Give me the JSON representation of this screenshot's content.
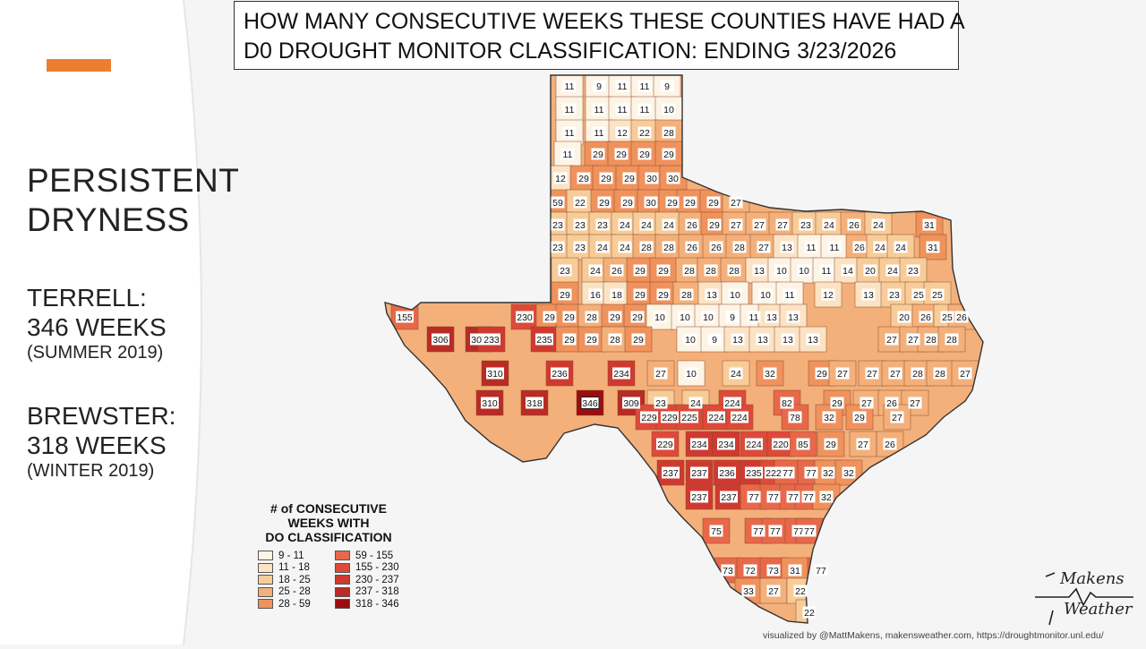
{
  "header": {
    "title_line1": "HOW MANY CONSECUTIVE WEEKS THESE COUNTIES HAVE HAD A",
    "title_line2": "D0 DROUGHT MONITOR CLASSIFICATION: ENDING 3/23/2026"
  },
  "sidebar": {
    "title_line1": "PERSISTENT",
    "title_line2": "DRYNESS",
    "facts": [
      {
        "name": "TERRELL:",
        "weeks": "346 WEEKS",
        "since": "(SUMMER 2019)"
      },
      {
        "name": "BREWSTER:",
        "weeks": "318 WEEKS",
        "since": "(WINTER 2019)"
      }
    ]
  },
  "legend": {
    "title_line1": "# of CONSECUTIVE",
    "title_line2": "WEEKS WITH",
    "title_line3": "DO CLASSIFICATION",
    "bins": [
      {
        "label": "9 - 11",
        "color": "#fef4e6"
      },
      {
        "label": "11 - 18",
        "color": "#fce3c4"
      },
      {
        "label": "18 - 25",
        "color": "#f8cc98"
      },
      {
        "label": "25 - 28",
        "color": "#f4b07a"
      },
      {
        "label": "28 - 59",
        "color": "#ef925c"
      },
      {
        "label": "59 - 155",
        "color": "#e8684a"
      },
      {
        "label": "155 - 230",
        "color": "#dd4a3a"
      },
      {
        "label": "230 - 237",
        "color": "#cf3a30"
      },
      {
        "label": "237 - 318",
        "color": "#b82c25"
      },
      {
        "label": "318 - 346",
        "color": "#9a0e10"
      }
    ]
  },
  "map": {
    "county_values": [
      "11",
      "9",
      "11",
      "11",
      "9",
      "11",
      "11",
      "11",
      "11",
      "10",
      "11",
      "11",
      "12",
      "22",
      "28",
      "11",
      "29",
      "29",
      "29",
      "29",
      "12",
      "29",
      "29",
      "29",
      "30",
      "30",
      "59",
      "22",
      "29",
      "29",
      "30",
      "29",
      "29",
      "29",
      "27",
      "23",
      "23",
      "23",
      "24",
      "24",
      "24",
      "26",
      "29",
      "27",
      "27",
      "27",
      "23",
      "24",
      "26",
      "24",
      "31",
      "23",
      "23",
      "24",
      "24",
      "28",
      "28",
      "26",
      "26",
      "28",
      "27",
      "13",
      "11",
      "11",
      "26",
      "24",
      "24",
      "31",
      "23",
      "24",
      "26",
      "29",
      "29",
      "28",
      "28",
      "28",
      "13",
      "10",
      "10",
      "11",
      "14",
      "20",
      "24",
      "23",
      "29",
      "16",
      "18",
      "29",
      "29",
      "28",
      "13",
      "10",
      "10",
      "11",
      "12",
      "13",
      "23",
      "25",
      "25",
      "155",
      "230",
      "29",
      "29",
      "28",
      "29",
      "29",
      "10",
      "10",
      "10",
      "9",
      "11",
      "13",
      "13",
      "20",
      "26",
      "25",
      "26",
      "306",
      "307",
      "233",
      "235",
      "29",
      "29",
      "28",
      "29",
      "10",
      "9",
      "13",
      "13",
      "13",
      "13",
      "27",
      "27",
      "28",
      "28",
      "310",
      "236",
      "234",
      "27",
      "10",
      "24",
      "32",
      "29",
      "27",
      "27",
      "27",
      "28",
      "28",
      "27",
      "310",
      "318",
      "346",
      "309",
      "23",
      "24",
      "224",
      "82",
      "29",
      "27",
      "26",
      "27",
      "229",
      "229",
      "225",
      "224",
      "224",
      "78",
      "32",
      "29",
      "27",
      "229",
      "234",
      "234",
      "224",
      "220",
      "85",
      "29",
      "27",
      "26",
      "237",
      "237",
      "236",
      "235",
      "222",
      "77",
      "77",
      "32",
      "32",
      "237",
      "237",
      "77",
      "77",
      "77",
      "77",
      "32",
      "75",
      "77",
      "77",
      "77",
      "77",
      "73",
      "72",
      "73",
      "31",
      "77",
      "33",
      "27",
      "22",
      "22"
    ],
    "callouts": [
      "346"
    ]
  },
  "logo": {
    "line1": "Makens",
    "line2": "Weather"
  },
  "credit": "visualized by @MattMakens, makensweather.com, https://droughtmonitor.unl.edu/"
}
